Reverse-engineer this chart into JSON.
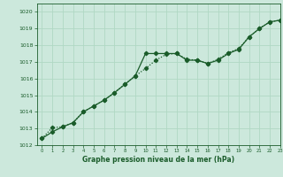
{
  "xlabel": "Graphe pression niveau de la mer (hPa)",
  "ylim": [
    1012,
    1020.5
  ],
  "xlim": [
    -0.5,
    23
  ],
  "yticks": [
    1012,
    1013,
    1014,
    1015,
    1016,
    1017,
    1018,
    1019,
    1020
  ],
  "xticks": [
    0,
    1,
    2,
    3,
    4,
    5,
    6,
    7,
    8,
    9,
    10,
    11,
    12,
    13,
    14,
    15,
    16,
    17,
    18,
    19,
    20,
    21,
    22,
    23
  ],
  "bg_color": "#cce8dc",
  "grid_color": "#b0d8c4",
  "line_color": "#1a5c2a",
  "line1_x": [
    0,
    1,
    2,
    3,
    4,
    5,
    6,
    7,
    8,
    9,
    10,
    11,
    12,
    13,
    14,
    15,
    16,
    17,
    18,
    19,
    20,
    21,
    22,
    23
  ],
  "line1_y": [
    1012.4,
    1012.8,
    1013.1,
    1013.35,
    1014.0,
    1014.35,
    1014.7,
    1015.15,
    1015.65,
    1016.15,
    1017.5,
    1017.5,
    1017.5,
    1017.5,
    1017.1,
    1017.1,
    1016.9,
    1017.1,
    1017.5,
    1017.75,
    1018.5,
    1019.0,
    1019.4,
    1019.5
  ],
  "line2_x": [
    0,
    1,
    2,
    3,
    4,
    5,
    6,
    7,
    8,
    9,
    10,
    11,
    12,
    13,
    14,
    15,
    16,
    17,
    18,
    19,
    20,
    21,
    22,
    23
  ],
  "line2_y": [
    1012.4,
    1013.05,
    1013.1,
    1013.35,
    1014.0,
    1014.35,
    1014.7,
    1015.15,
    1015.65,
    1016.15,
    1016.6,
    1017.1,
    1017.45,
    1017.5,
    1017.15,
    1017.1,
    1016.9,
    1017.15,
    1017.55,
    1017.8,
    1018.5,
    1019.0,
    1019.4,
    1019.5
  ],
  "line1_style": "-",
  "line2_style": "--"
}
